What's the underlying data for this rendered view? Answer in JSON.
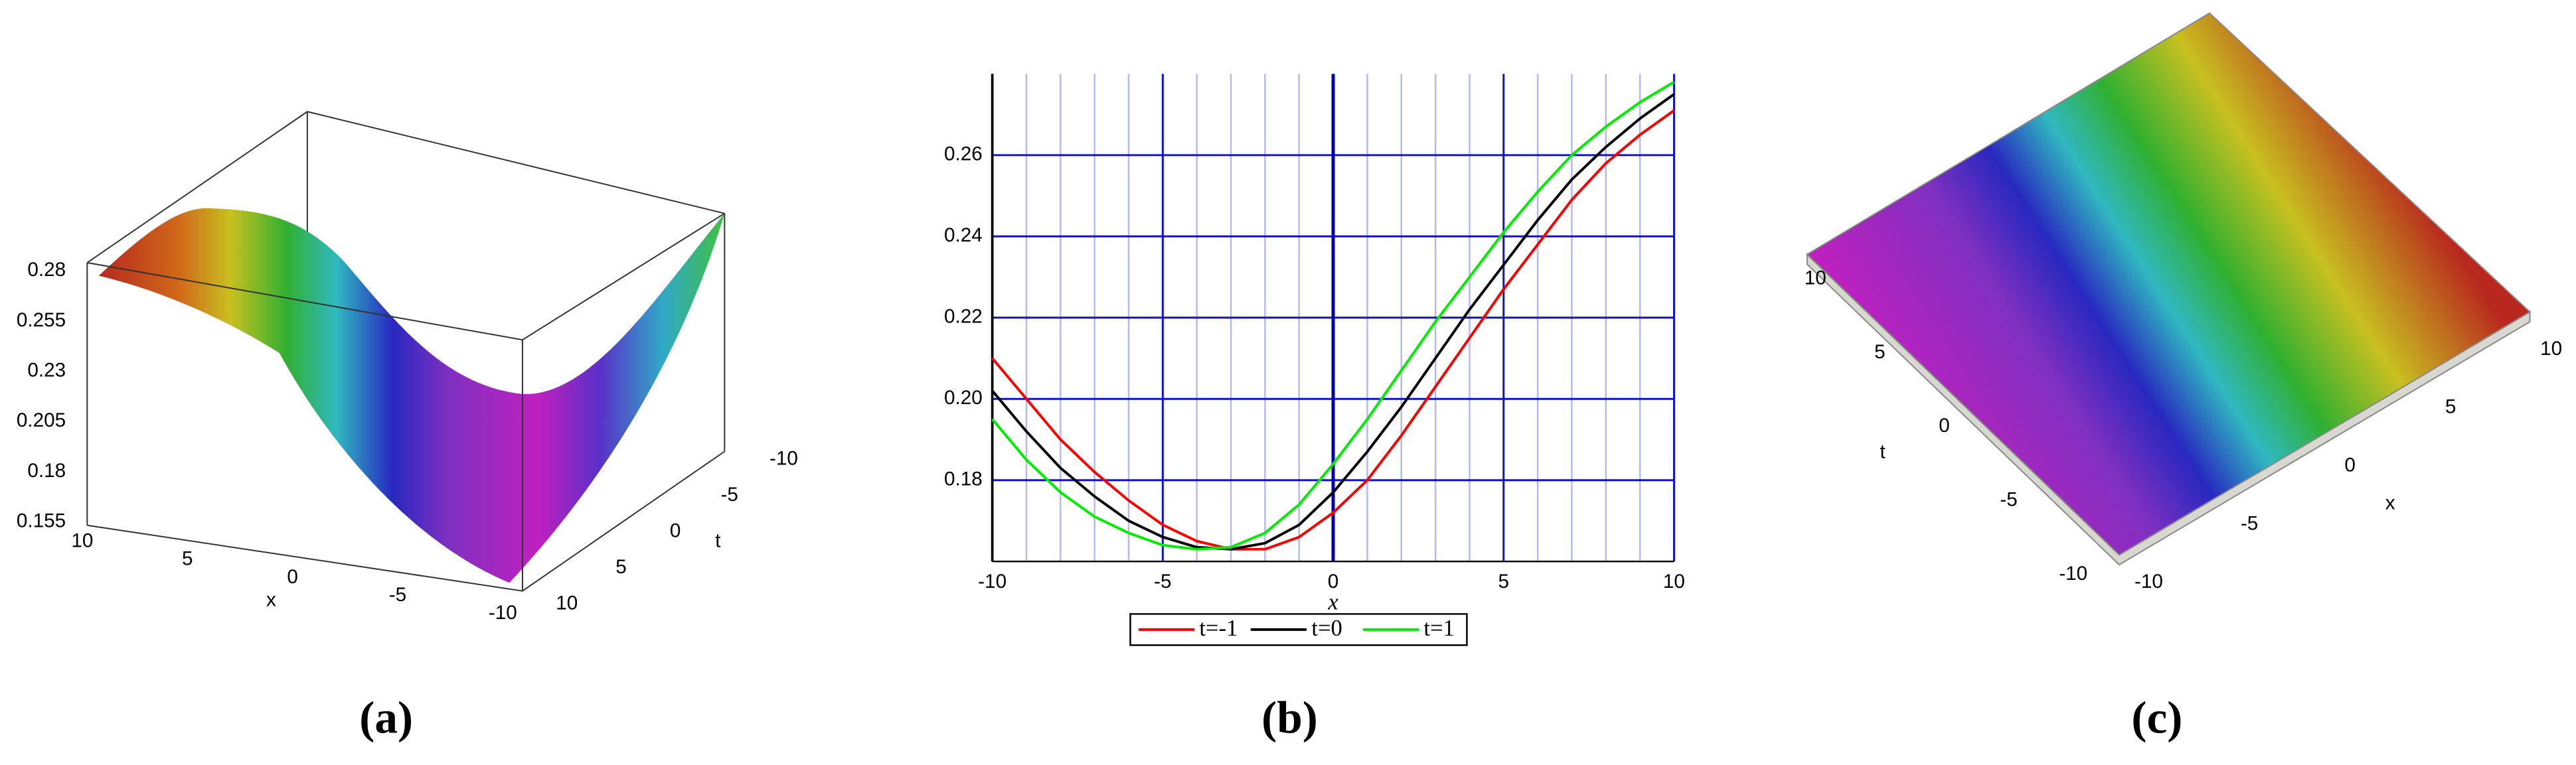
{
  "chart_data": [
    {
      "type": "surface",
      "caption": "(a)",
      "xlabel": "x",
      "ylabel": "t",
      "xlim": [
        -10,
        10
      ],
      "xticks": [
        -10,
        -5,
        0,
        5,
        10
      ],
      "ylim": [
        -10,
        10
      ],
      "yticks": [
        -10,
        -5,
        0,
        5,
        10
      ],
      "zlim": [
        0.155,
        0.28
      ],
      "zticks": [
        0.155,
        0.18,
        0.205,
        0.23,
        0.255,
        0.28
      ]
    },
    {
      "type": "line",
      "caption": "(b)",
      "xlabel": "x",
      "x": [
        -10,
        -9,
        -8,
        -7,
        -6,
        -5,
        -4,
        -3,
        -2,
        -1,
        0,
        1,
        2,
        3,
        4,
        5,
        6,
        7,
        8,
        9,
        10
      ],
      "xlim": [
        -10,
        10
      ],
      "xticks": [
        -10,
        -5,
        0,
        5,
        10
      ],
      "ylim": [
        0.16,
        0.28
      ],
      "yticks": [
        0.18,
        {
          "value": 0.2,
          "label": "0.20"
        },
        0.22,
        0.24,
        0.26
      ],
      "grid": true,
      "legend": "bottom",
      "series": [
        {
          "name": "t=-1",
          "color": "#ff0000",
          "values": [
            0.21,
            0.2,
            0.19,
            0.182,
            0.175,
            0.169,
            0.165,
            0.163,
            0.163,
            0.166,
            0.172,
            0.18,
            0.191,
            0.203,
            0.215,
            0.227,
            0.238,
            0.249,
            0.258,
            0.265,
            0.271
          ]
        },
        {
          "name": "t=0",
          "color": "#000000",
          "values": [
            0.202,
            0.192,
            0.183,
            0.176,
            0.17,
            0.166,
            0.1635,
            0.163,
            0.1645,
            0.169,
            0.177,
            0.187,
            0.198,
            0.21,
            0.222,
            0.233,
            0.244,
            0.254,
            0.262,
            0.269,
            0.275
          ]
        },
        {
          "name": "t=1",
          "color": "#00ee00",
          "values": [
            0.195,
            0.185,
            0.177,
            0.171,
            0.167,
            0.164,
            0.163,
            0.1635,
            0.167,
            0.174,
            0.184,
            0.195,
            0.207,
            0.219,
            0.23,
            0.241,
            0.251,
            0.26,
            0.267,
            0.273,
            0.278
          ]
        }
      ]
    },
    {
      "type": "surface",
      "caption": "(c)",
      "xlabel": "x",
      "ylabel": "t",
      "xlim": [
        -10,
        10
      ],
      "xticks": [
        -10,
        -5,
        0,
        5,
        10
      ],
      "ylim": [
        -10,
        10
      ],
      "yticks": [
        -10,
        -5,
        0,
        5,
        10
      ]
    }
  ]
}
